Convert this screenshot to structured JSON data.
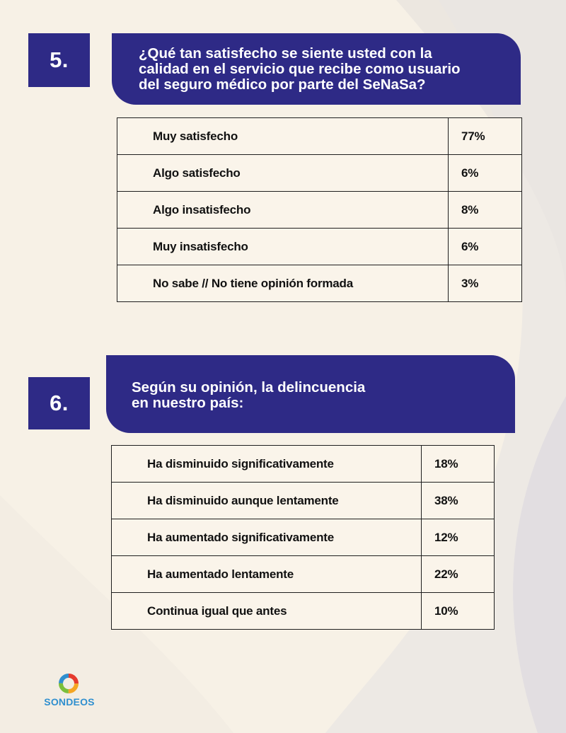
{
  "colors": {
    "brand_navy": "#2e2a86",
    "background": "#f7f1e6",
    "logo_text": "#2f8fcf",
    "logo_ring": [
      "#e63b2e",
      "#f5a623",
      "#7bbf3a",
      "#2f8fcf"
    ]
  },
  "questions": [
    {
      "number": "5.",
      "text_lines": [
        "¿Qué tan satisfecho se siente usted con la",
        "calidad en el servicio que recibe como usuario",
        "del seguro médico por parte del SeNaSa?"
      ],
      "rows": [
        {
          "label": "Muy satisfecho",
          "value": "77%"
        },
        {
          "label": "Algo satisfecho",
          "value": "6%"
        },
        {
          "label": "Algo insatisfecho",
          "value": "8%"
        },
        {
          "label": "Muy insatisfecho",
          "value": "6%"
        },
        {
          "label": "No sabe // No tiene opinión formada",
          "value": "3%"
        }
      ]
    },
    {
      "number": "6.",
      "text_lines": [
        "Según su opinión, la delincuencia",
        "en nuestro país:"
      ],
      "rows": [
        {
          "label": "Ha disminuido significativamente",
          "value": "18%"
        },
        {
          "label": "Ha disminuido aunque lentamente",
          "value": "38%"
        },
        {
          "label": "Ha aumentado significativamente",
          "value": "12%"
        },
        {
          "label": "Ha aumentado lentamente",
          "value": "22%"
        },
        {
          "label": "Continua igual que antes",
          "value": "10%"
        }
      ]
    }
  ],
  "logo": {
    "text": "SONDEOS",
    "icon": "ring-logo-icon"
  }
}
